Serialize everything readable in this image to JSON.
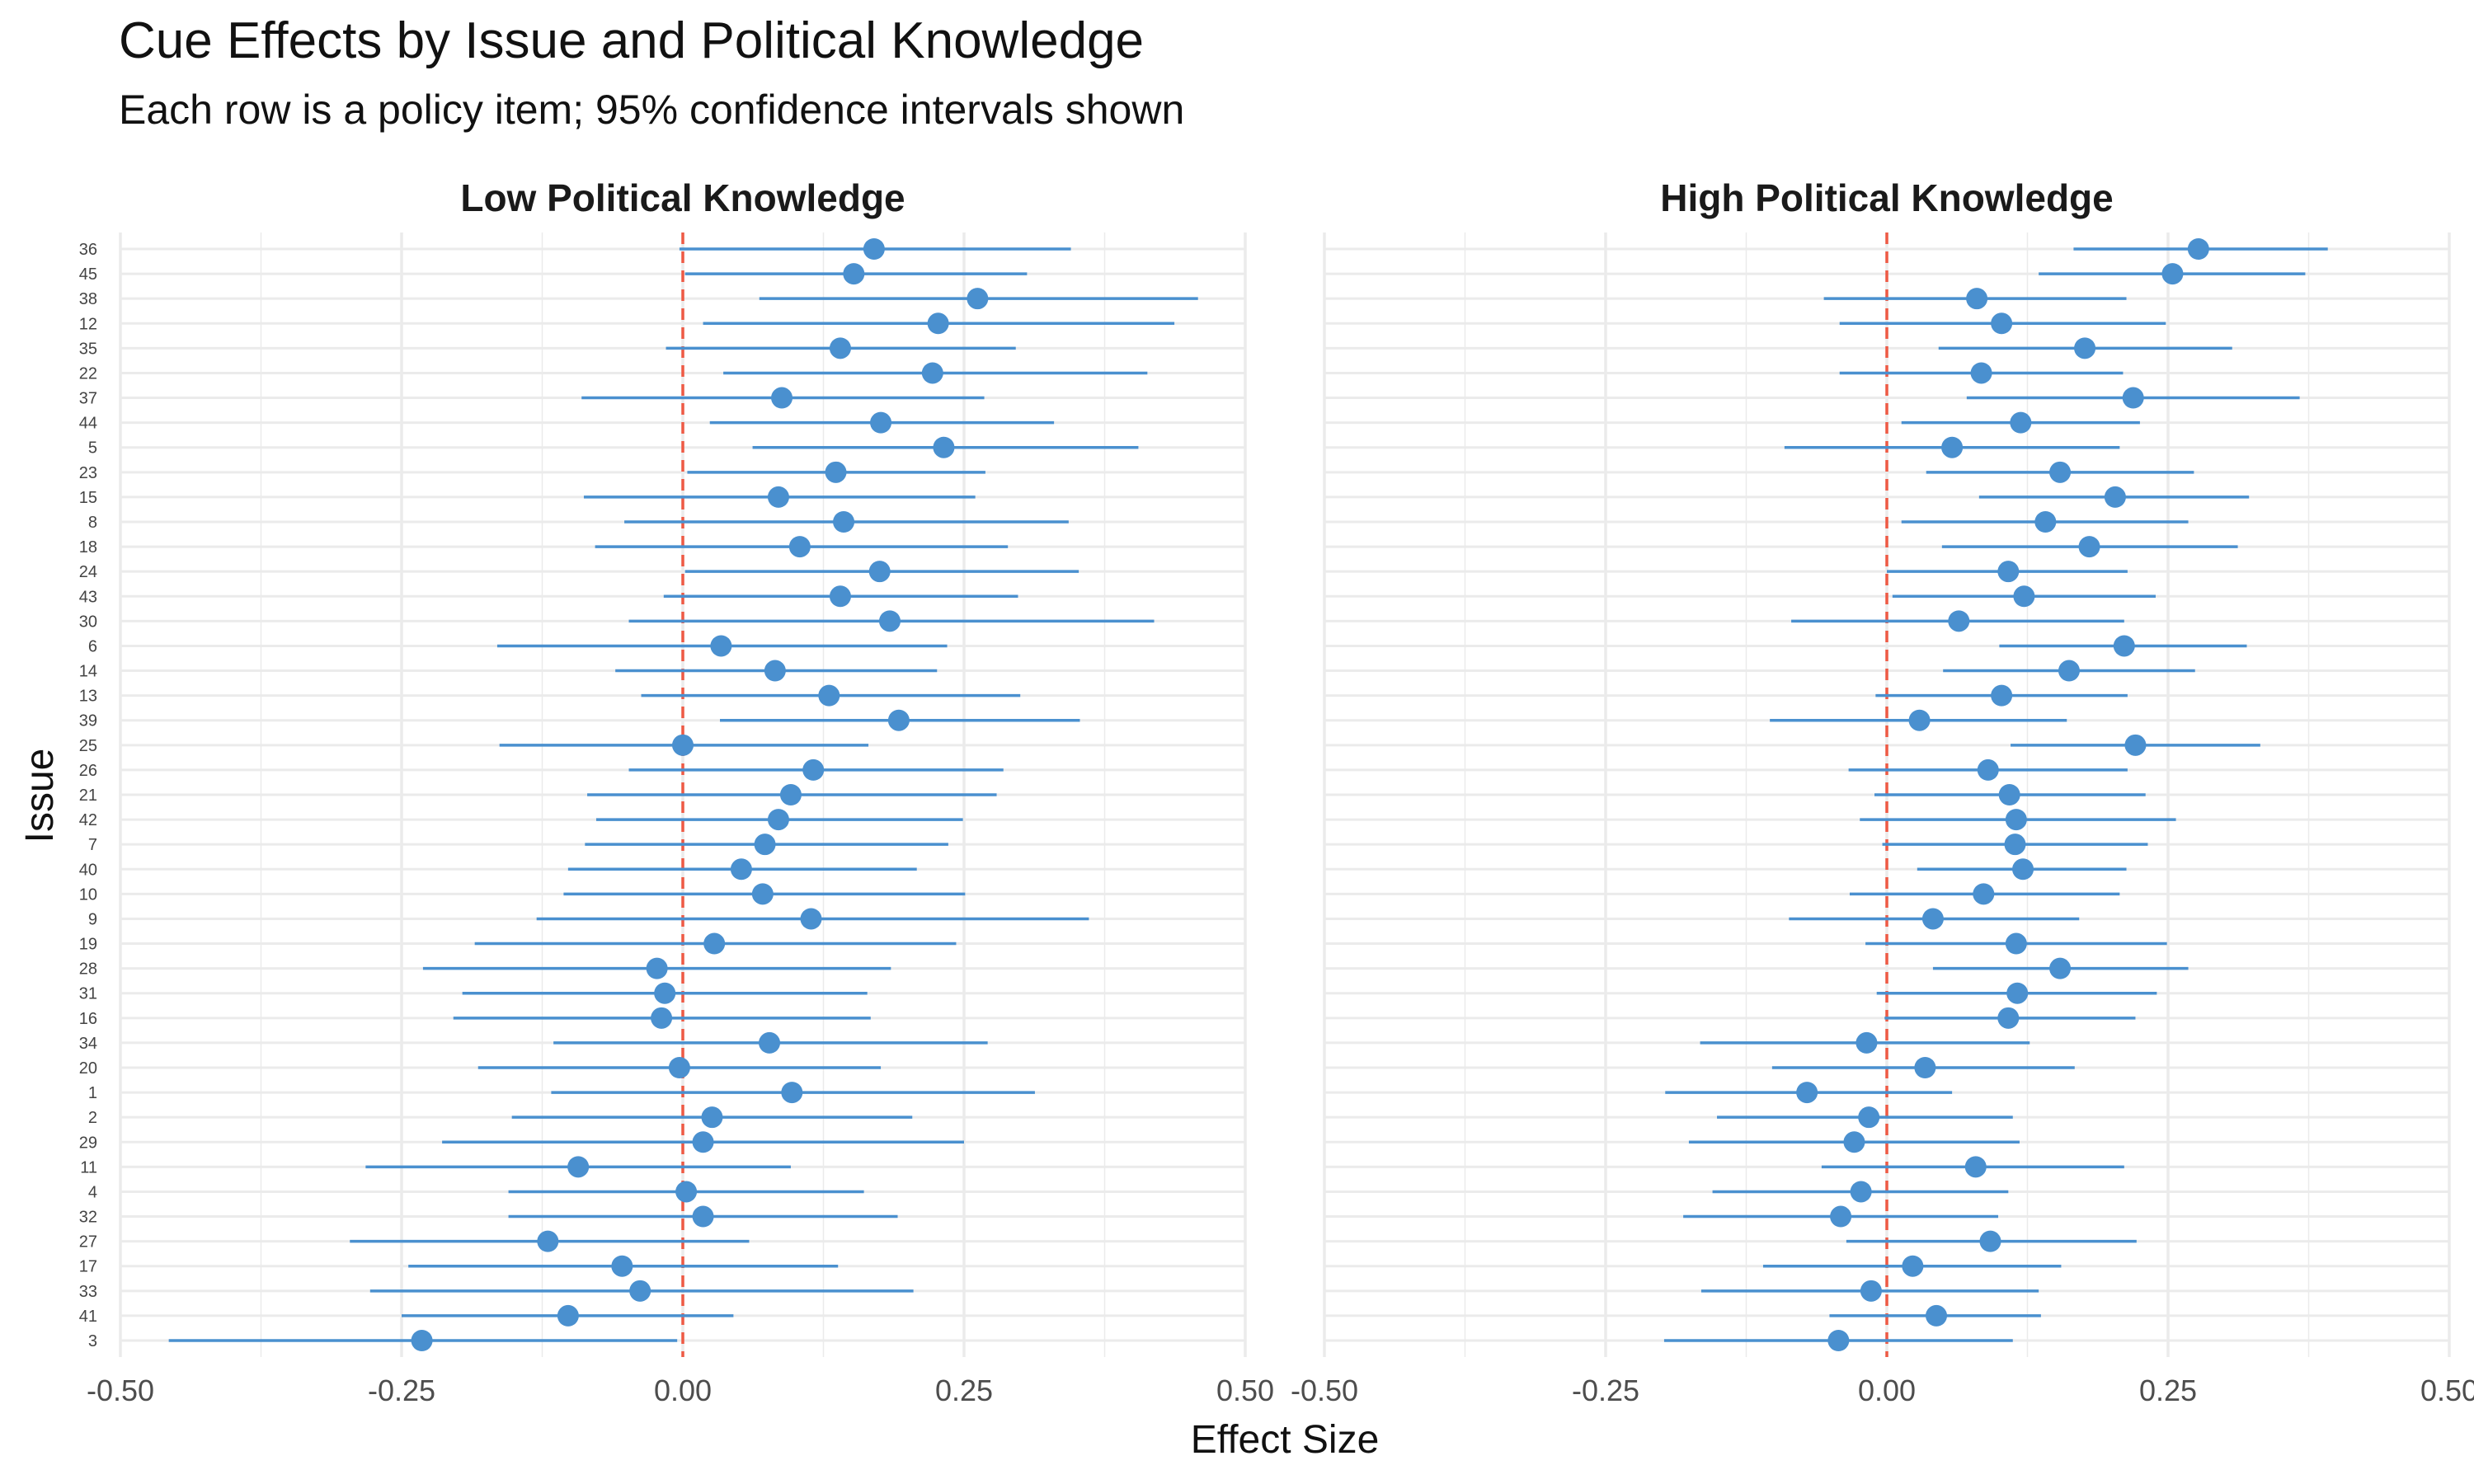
{
  "chart_data": {
    "type": "forest",
    "title": "Cue Effects by Issue and Political Knowledge",
    "subtitle": "Each row is a policy item; 95% confidence intervals shown",
    "xlabel": "Effect Size",
    "ylabel": "Issue",
    "xlim": [
      -0.5,
      0.5
    ],
    "x_ticks": [
      "-0.50",
      "-0.25",
      "0.00",
      "0.25",
      "0.50"
    ],
    "reference_line": 0,
    "colors": {
      "points": "#4a90cf",
      "reference_line": "#ee5a45",
      "grid": "#ebebeb"
    },
    "issues": [
      "36",
      "45",
      "38",
      "12",
      "35",
      "22",
      "37",
      "44",
      "5",
      "23",
      "15",
      "8",
      "18",
      "24",
      "43",
      "30",
      "6",
      "14",
      "13",
      "39",
      "25",
      "26",
      "21",
      "42",
      "7",
      "40",
      "10",
      "9",
      "19",
      "28",
      "31",
      "16",
      "34",
      "20",
      "1",
      "2",
      "29",
      "11",
      "4",
      "32",
      "27",
      "17",
      "33",
      "41",
      "3"
    ],
    "panels": [
      {
        "name": "Low Political Knowledge",
        "estimates": [
          0.17,
          0.152,
          0.262,
          0.227,
          0.14,
          0.222,
          0.088,
          0.176,
          0.232,
          0.136,
          0.085,
          0.143,
          0.104,
          0.175,
          0.14,
          0.184,
          0.034,
          0.082,
          0.13,
          0.192,
          0.0,
          0.116,
          0.096,
          0.085,
          0.073,
          0.052,
          0.071,
          0.114,
          0.028,
          -0.023,
          -0.016,
          -0.019,
          0.077,
          -0.003,
          0.097,
          0.026,
          0.018,
          -0.093,
          0.003,
          0.018,
          -0.12,
          -0.054,
          -0.038,
          -0.102,
          -0.232
        ],
        "lower": [
          -0.003,
          0.002,
          0.068,
          0.018,
          -0.015,
          0.036,
          -0.09,
          0.024,
          0.062,
          0.004,
          -0.088,
          -0.052,
          -0.078,
          0.002,
          -0.017,
          -0.048,
          -0.165,
          -0.06,
          -0.037,
          0.033,
          -0.163,
          -0.048,
          -0.085,
          -0.077,
          -0.087,
          -0.102,
          -0.106,
          -0.13,
          -0.185,
          -0.231,
          -0.196,
          -0.204,
          -0.115,
          -0.182,
          -0.117,
          -0.152,
          -0.214,
          -0.282,
          -0.155,
          -0.155,
          -0.296,
          -0.244,
          -0.278,
          -0.25,
          -0.457
        ],
        "upper": [
          0.345,
          0.306,
          0.458,
          0.437,
          0.296,
          0.413,
          0.268,
          0.33,
          0.405,
          0.269,
          0.26,
          0.343,
          0.289,
          0.352,
          0.298,
          0.419,
          0.235,
          0.226,
          0.3,
          0.353,
          0.165,
          0.285,
          0.279,
          0.249,
          0.236,
          0.208,
          0.251,
          0.361,
          0.243,
          0.185,
          0.164,
          0.167,
          0.271,
          0.176,
          0.313,
          0.204,
          0.25,
          0.096,
          0.161,
          0.191,
          0.059,
          0.138,
          0.205,
          0.045,
          -0.005
        ]
      },
      {
        "name": "High Political Knowledge",
        "estimates": [
          0.277,
          0.254,
          0.08,
          0.102,
          0.176,
          0.084,
          0.219,
          0.119,
          0.058,
          0.154,
          0.203,
          0.141,
          0.18,
          0.108,
          0.122,
          0.064,
          0.211,
          0.162,
          0.102,
          0.029,
          0.221,
          0.09,
          0.109,
          0.115,
          0.114,
          0.121,
          0.086,
          0.041,
          0.115,
          0.154,
          0.116,
          0.108,
          -0.018,
          0.034,
          -0.071,
          -0.016,
          -0.029,
          0.079,
          -0.023,
          -0.041,
          0.092,
          0.023,
          -0.014,
          0.044,
          -0.043
        ],
        "lower": [
          0.166,
          0.135,
          -0.056,
          -0.042,
          0.046,
          -0.042,
          0.071,
          0.013,
          -0.091,
          0.035,
          0.082,
          0.013,
          0.049,
          0.0,
          0.005,
          -0.085,
          0.1,
          0.05,
          -0.01,
          -0.104,
          0.11,
          -0.034,
          -0.011,
          -0.024,
          -0.004,
          0.027,
          -0.033,
          -0.087,
          -0.019,
          0.041,
          -0.009,
          -0.002,
          -0.166,
          -0.102,
          -0.197,
          -0.151,
          -0.176,
          -0.058,
          -0.155,
          -0.181,
          -0.036,
          -0.11,
          -0.165,
          -0.051,
          -0.198
        ],
        "upper": [
          0.392,
          0.372,
          0.213,
          0.248,
          0.307,
          0.21,
          0.367,
          0.225,
          0.207,
          0.273,
          0.322,
          0.268,
          0.312,
          0.214,
          0.239,
          0.211,
          0.32,
          0.274,
          0.214,
          0.16,
          0.332,
          0.214,
          0.23,
          0.257,
          0.232,
          0.213,
          0.207,
          0.171,
          0.249,
          0.268,
          0.24,
          0.221,
          0.127,
          0.167,
          0.058,
          0.112,
          0.118,
          0.211,
          0.108,
          0.099,
          0.222,
          0.155,
          0.135,
          0.137,
          0.112
        ]
      }
    ]
  }
}
